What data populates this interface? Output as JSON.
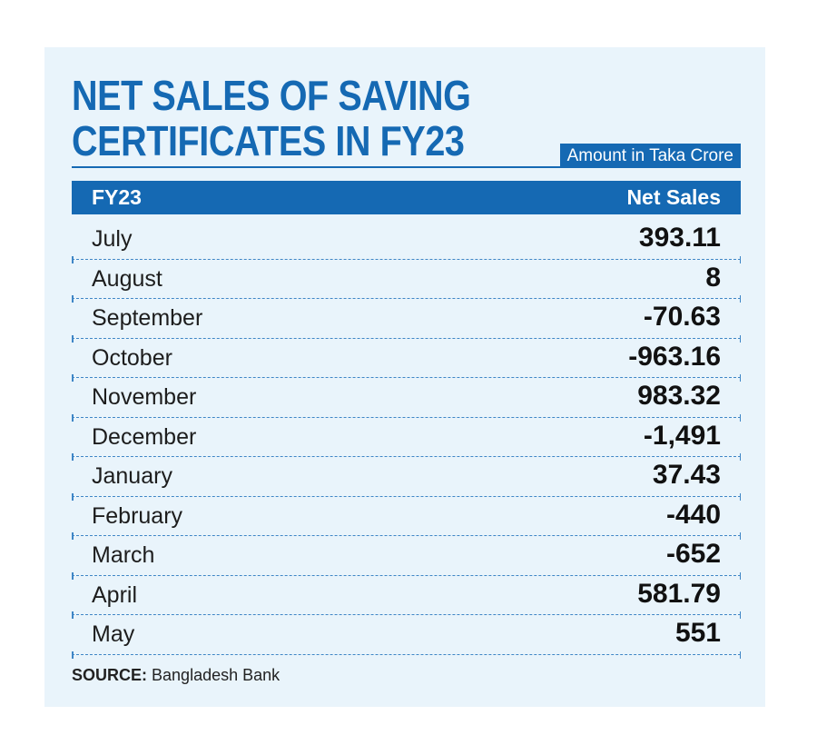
{
  "title_line1": "NET SALES OF SAVING",
  "title_line2": "CERTIFICATES IN FY23",
  "unit_note": "Amount in Taka Crore",
  "source_label": "SOURCE:",
  "source_text": "Bangladesh Bank",
  "colors": {
    "accent": "#1569b3",
    "background": "#e9f4fb",
    "divider": "#3f86c6"
  },
  "chart_data": {
    "type": "table",
    "columns": [
      "FY23",
      "Net Sales"
    ],
    "rows": [
      {
        "month": "July",
        "net_sales": "393.11"
      },
      {
        "month": "August",
        "net_sales": "8"
      },
      {
        "month": "September",
        "net_sales": "-70.63"
      },
      {
        "month": "October",
        "net_sales": "-963.16"
      },
      {
        "month": "November",
        "net_sales": "983.32"
      },
      {
        "month": "December",
        "net_sales": "-1,491"
      },
      {
        "month": "January",
        "net_sales": "37.43"
      },
      {
        "month": "February",
        "net_sales": "-440"
      },
      {
        "month": "March",
        "net_sales": "-652"
      },
      {
        "month": "April",
        "net_sales": "581.79"
      },
      {
        "month": "May",
        "net_sales": "551"
      }
    ]
  }
}
